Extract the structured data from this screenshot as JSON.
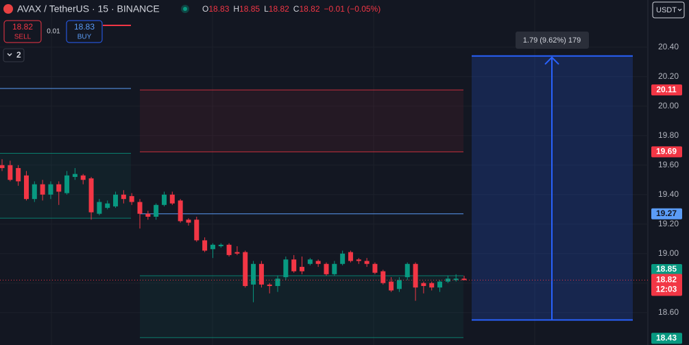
{
  "header": {
    "symbol": "AVAX / TetherUS · 15 · BINANCE",
    "ohlc_labels": [
      "O",
      "H",
      "L",
      "C"
    ],
    "change": "−0.01 (−0.05%)",
    "sell_price": "18.82",
    "sell": "SELL",
    "quantity": "0.01",
    "buy_price": "18.83",
    "buy": "BUY",
    "indicators": "2",
    "currency": "USDT"
  },
  "chart_data": {
    "type": "candlestick",
    "open": [
      19.6,
      19.6,
      19.58,
      19.53,
      19.37,
      19.47,
      19.4,
      19.47,
      19.41,
      19.52,
      19.53,
      19.51,
      19.27,
      19.31,
      19.32,
      19.4,
      19.39,
      19.35,
      19.27,
      19.25,
      19.33,
      19.4,
      19.36,
      19.23,
      19.23,
      19.09,
      19.03,
      19.05,
      19.06,
      19.01,
      19.01,
      18.79,
      18.93,
      18.79,
      18.78,
      18.84,
      18.96,
      18.91,
      18.93,
      18.95,
      18.93,
      18.86,
      18.93,
      19.01,
      18.96,
      18.95,
      18.93,
      18.88,
      18.81,
      18.76,
      18.84,
      18.93,
      18.8,
      18.8,
      18.77,
      18.81,
      18.82,
      18.83
    ],
    "high": [
      19.64,
      19.63,
      19.6,
      19.56,
      19.49,
      19.5,
      19.49,
      19.49,
      19.56,
      19.58,
      19.54,
      19.52,
      19.37,
      19.36,
      19.42,
      19.43,
      19.41,
      19.37,
      19.29,
      19.34,
      19.42,
      19.42,
      19.37,
      19.24,
      19.25,
      19.11,
      19.07,
      19.07,
      19.07,
      19.05,
      19.02,
      18.95,
      18.95,
      18.8,
      18.85,
      18.98,
      18.99,
      18.98,
      18.97,
      18.96,
      18.94,
      18.95,
      19.02,
      19.02,
      18.97,
      18.97,
      18.94,
      18.89,
      18.84,
      18.84,
      18.94,
      18.94,
      18.81,
      18.81,
      18.82,
      18.85,
      18.86,
      18.85
    ],
    "low": [
      19.56,
      19.49,
      19.46,
      19.36,
      19.35,
      19.36,
      19.37,
      19.33,
      19.4,
      19.5,
      19.47,
      19.23,
      19.26,
      19.3,
      19.31,
      19.34,
      19.33,
      19.17,
      19.23,
      19.23,
      19.32,
      19.33,
      19.21,
      19.19,
      19.08,
      19.01,
      18.97,
      19.04,
      18.98,
      18.99,
      18.77,
      18.67,
      18.77,
      18.73,
      18.74,
      18.82,
      18.87,
      18.86,
      18.92,
      18.91,
      18.85,
      18.85,
      18.92,
      18.94,
      18.93,
      18.91,
      18.86,
      18.79,
      18.74,
      18.74,
      18.82,
      18.68,
      18.73,
      18.75,
      18.74,
      18.8,
      18.81,
      18.82
    ],
    "close": [
      19.58,
      19.5,
      19.49,
      19.37,
      19.47,
      19.4,
      19.47,
      19.42,
      19.53,
      19.54,
      19.5,
      19.28,
      19.35,
      19.34,
      19.4,
      19.37,
      19.35,
      19.27,
      19.25,
      19.33,
      19.4,
      19.34,
      19.22,
      19.21,
      19.09,
      19.02,
      19.06,
      19.06,
      18.99,
      19.0,
      18.78,
      18.93,
      18.79,
      18.78,
      18.83,
      18.96,
      18.88,
      18.88,
      18.96,
      18.93,
      18.86,
      18.93,
      19.0,
      18.95,
      18.95,
      18.93,
      18.87,
      18.8,
      18.75,
      18.82,
      18.93,
      18.77,
      18.78,
      18.77,
      18.81,
      18.83,
      18.83,
      18.82
    ],
    "up_color": "#089981",
    "down_color": "#f23645",
    "ylim": [
      18.38,
      20.72
    ],
    "yticks": [
      {
        "value": 18.6,
        "label": "18.60"
      },
      {
        "value": 18.8,
        "label": "18.80"
      },
      {
        "value": 19.0,
        "label": "19.00"
      },
      {
        "value": 19.2,
        "label": "19.20"
      },
      {
        "value": 19.4,
        "label": "19.40"
      },
      {
        "value": 19.6,
        "label": "19.60"
      },
      {
        "value": 19.8,
        "label": "19.80"
      },
      {
        "value": 20.0,
        "label": "20.00"
      },
      {
        "value": 20.2,
        "label": "20.20"
      },
      {
        "value": 20.4,
        "label": "20.40"
      }
    ],
    "countdown": "12:03",
    "zones": [
      {
        "top": 20.11,
        "bottom": 19.69,
        "color": "#f23645"
      },
      {
        "top": 18.85,
        "bottom": 18.43,
        "color": "#089981"
      },
      {
        "top": 19.68,
        "bottom": 19.24,
        "color": "#089981"
      }
    ],
    "lines": [
      {
        "value": 19.27,
        "color": "#5b9cf6"
      },
      {
        "value": 20.12,
        "color": "#5b9cf6"
      }
    ],
    "position": {
      "top": 20.34,
      "bottom": 18.55,
      "color": "#2962ff",
      "label": "1.79 (9.62%) 179"
    }
  }
}
